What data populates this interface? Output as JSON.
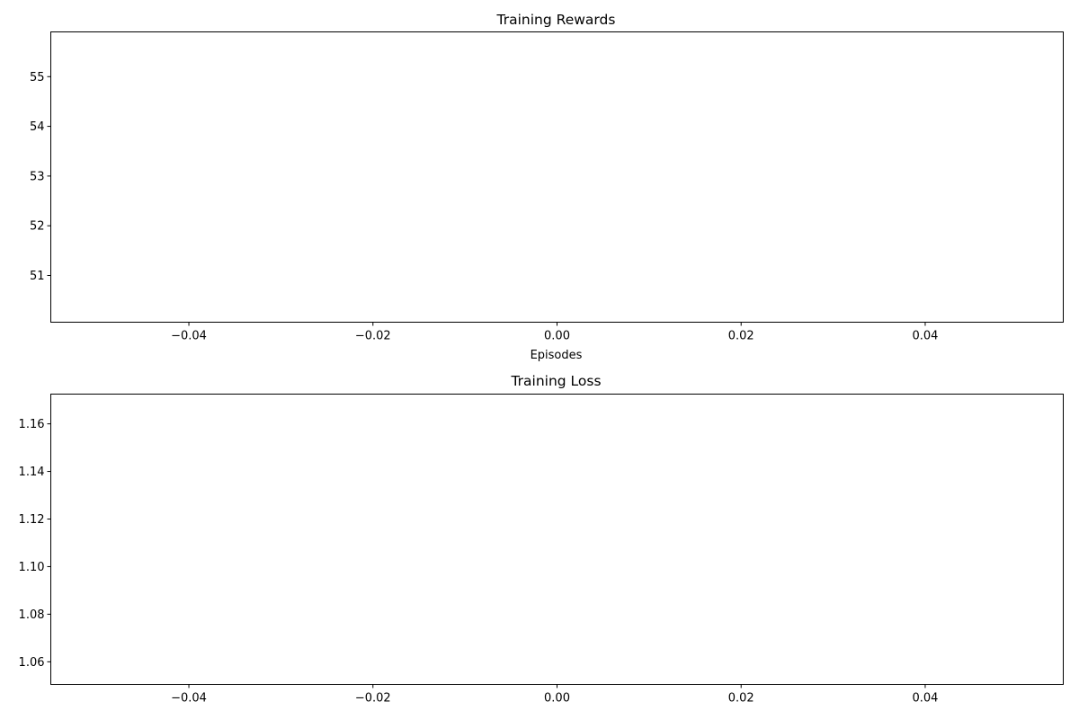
{
  "chart_data": [
    {
      "type": "line",
      "title": "Training Rewards",
      "xlabel": "Episodes",
      "ylabel": "",
      "xlim": [
        -0.055,
        0.055
      ],
      "ylim": [
        50.06,
        55.9
      ],
      "x_ticks": [
        -0.04,
        -0.02,
        0.0,
        0.02,
        0.04
      ],
      "x_tick_labels": [
        "−0.04",
        "−0.02",
        "0.00",
        "0.02",
        "0.04"
      ],
      "y_ticks": [
        51,
        52,
        53,
        54,
        55
      ],
      "y_tick_labels": [
        "51",
        "52",
        "53",
        "54",
        "55"
      ],
      "series": [],
      "grid": false
    },
    {
      "type": "line",
      "title": "Training Loss",
      "xlabel": "",
      "ylabel": "",
      "xlim": [
        -0.055,
        0.055
      ],
      "ylim": [
        1.0505,
        1.1725
      ],
      "x_ticks": [
        -0.04,
        -0.02,
        0.0,
        0.02,
        0.04
      ],
      "x_tick_labels": [
        "−0.04",
        "−0.02",
        "0.00",
        "0.02",
        "0.04"
      ],
      "y_ticks": [
        1.06,
        1.08,
        1.1,
        1.12,
        1.14,
        1.16
      ],
      "y_tick_labels": [
        "1.06",
        "1.08",
        "1.10",
        "1.12",
        "1.14",
        "1.16"
      ],
      "series": [],
      "grid": false
    }
  ],
  "colors": {
    "frame": "#000000",
    "background": "#ffffff"
  }
}
